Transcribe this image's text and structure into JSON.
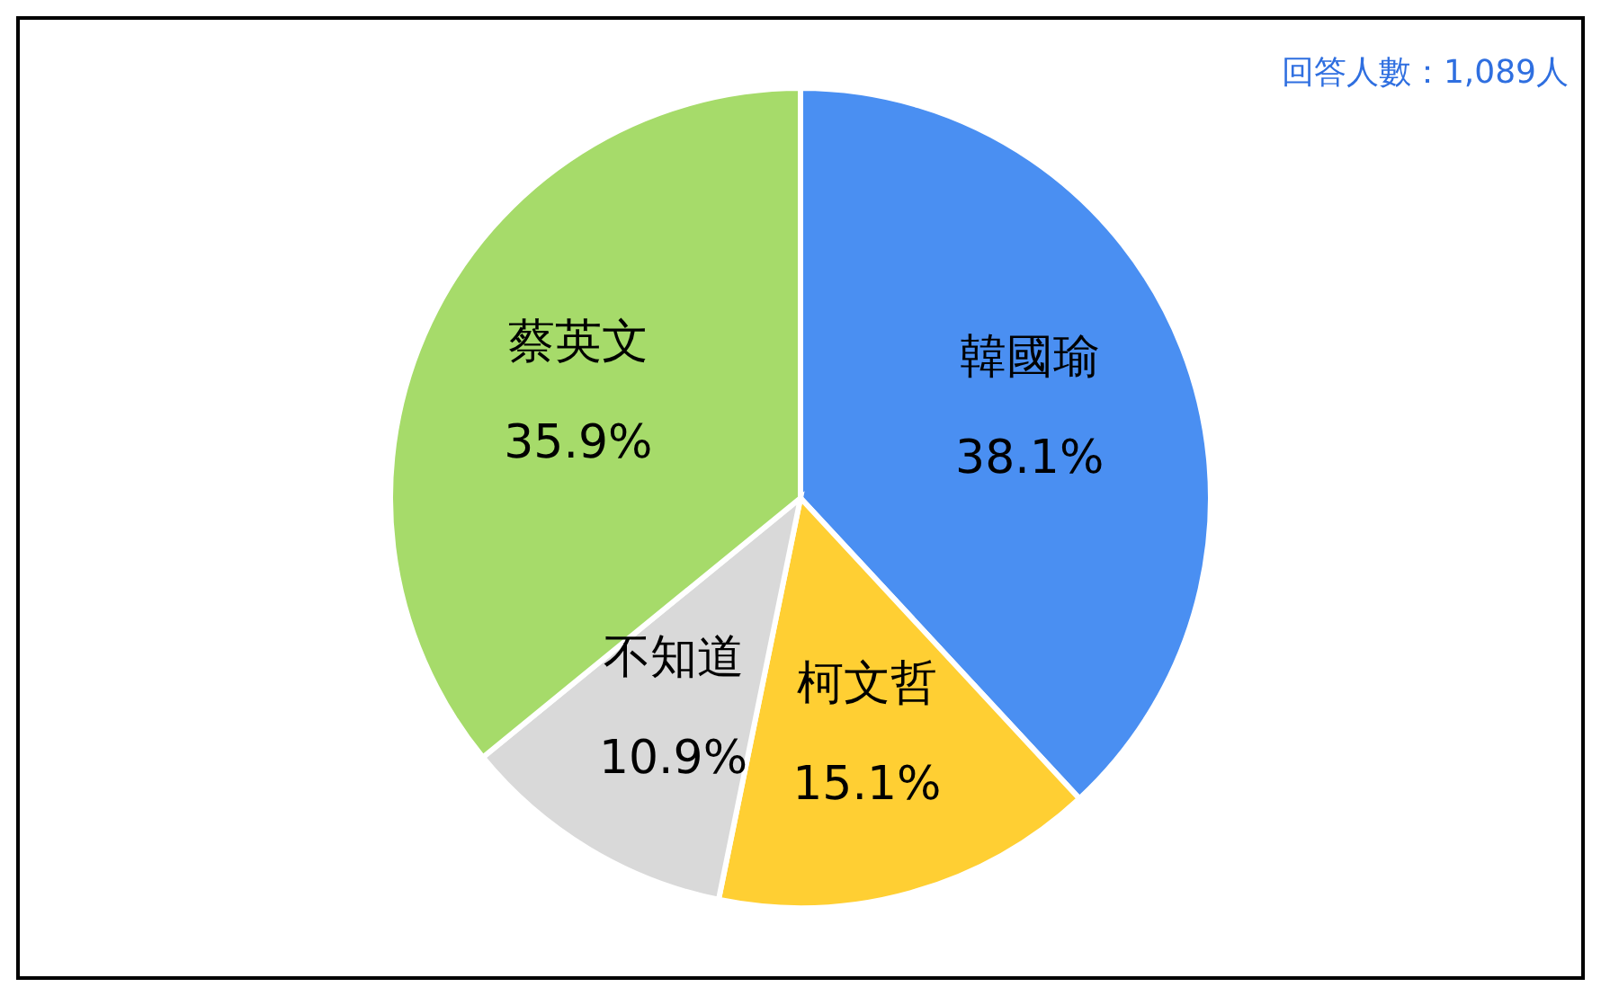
{
  "chart_data": {
    "type": "pie",
    "categories": [
      "韓國瑜",
      "柯文哲",
      "不知道",
      "蔡英文"
    ],
    "values": [
      38.1,
      15.1,
      10.9,
      35.9
    ],
    "colors": [
      "#4a8ff2",
      "#ffcf33",
      "#d9d9d9",
      "#a6db6a"
    ],
    "value_labels": [
      "38.1%",
      "15.1%",
      "10.9%",
      "35.9%"
    ],
    "annotations": [
      "回答人數：1,089人"
    ],
    "legend": false
  }
}
